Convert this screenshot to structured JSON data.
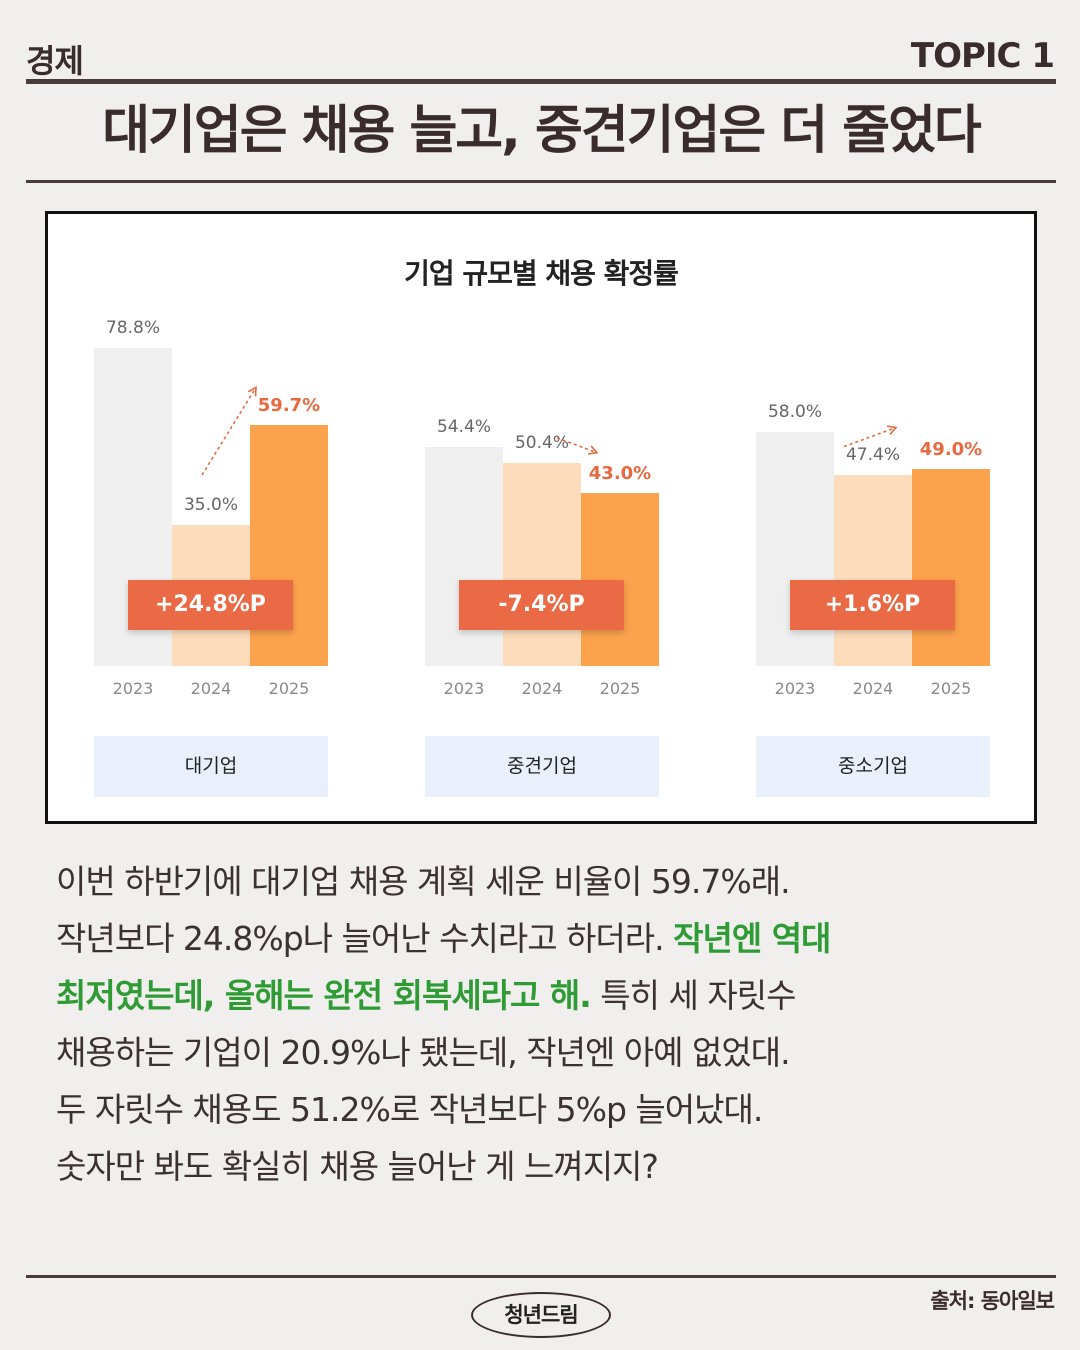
{
  "header": {
    "section": "경제",
    "topic": "TOPIC 1",
    "headline": "대기업은 채용 늘고, 중견기업은 더 줄었다"
  },
  "colors": {
    "bar_2023": "#efefef",
    "bar_2024": "#fcdcbb",
    "bar_2025": "#fba24c",
    "badge": "#ea6a45",
    "highlight_text": "#e8693f",
    "green_text": "#2e9b35"
  },
  "chart_data": {
    "type": "bar",
    "title": "기업 규모별 채용 확정률",
    "unit": "%",
    "ylim": [
      0,
      100
    ],
    "categories": [
      "2023",
      "2024",
      "2025"
    ],
    "groups": [
      {
        "name": "대기업",
        "values": [
          78.8,
          35.0,
          59.7
        ],
        "labels": [
          "78.8%",
          "35.0%",
          "59.7%"
        ],
        "change": "+24.8%P",
        "trend": "up"
      },
      {
        "name": "중견기업",
        "values": [
          54.4,
          50.4,
          43.0
        ],
        "labels": [
          "54.4%",
          "50.4%",
          "43.0%"
        ],
        "change": "-7.4%P",
        "trend": "down"
      },
      {
        "name": "중소기업",
        "values": [
          58.0,
          47.4,
          49.0
        ],
        "labels": [
          "58.0%",
          "47.4%",
          "49.0%"
        ],
        "change": "+1.6%P",
        "trend": "up"
      }
    ]
  },
  "body": {
    "line1": "이번 하반기에 대기업 채용 계획 세운 비율이 59.7%래.",
    "line2": "작년보다 24.8%p나 늘어난 수치라고 하더라. ",
    "line2_green": "작년엔 역대",
    "line3_green": "최저였는데, 올해는 완전 회복세라고 해.",
    "line3": " 특히 세 자릿수",
    "line4": "채용하는 기업이 20.9%나 됐는데, 작년엔 아예 없었대.",
    "line5": "두 자릿수 채용도 51.2%로 작년보다 5%p 늘어났대.",
    "line6": "숫자만 봐도 확실히 채용 늘어난 게 느껴지지?"
  },
  "footer": {
    "logo": "청년드림",
    "source": "출처: 동아일보"
  }
}
